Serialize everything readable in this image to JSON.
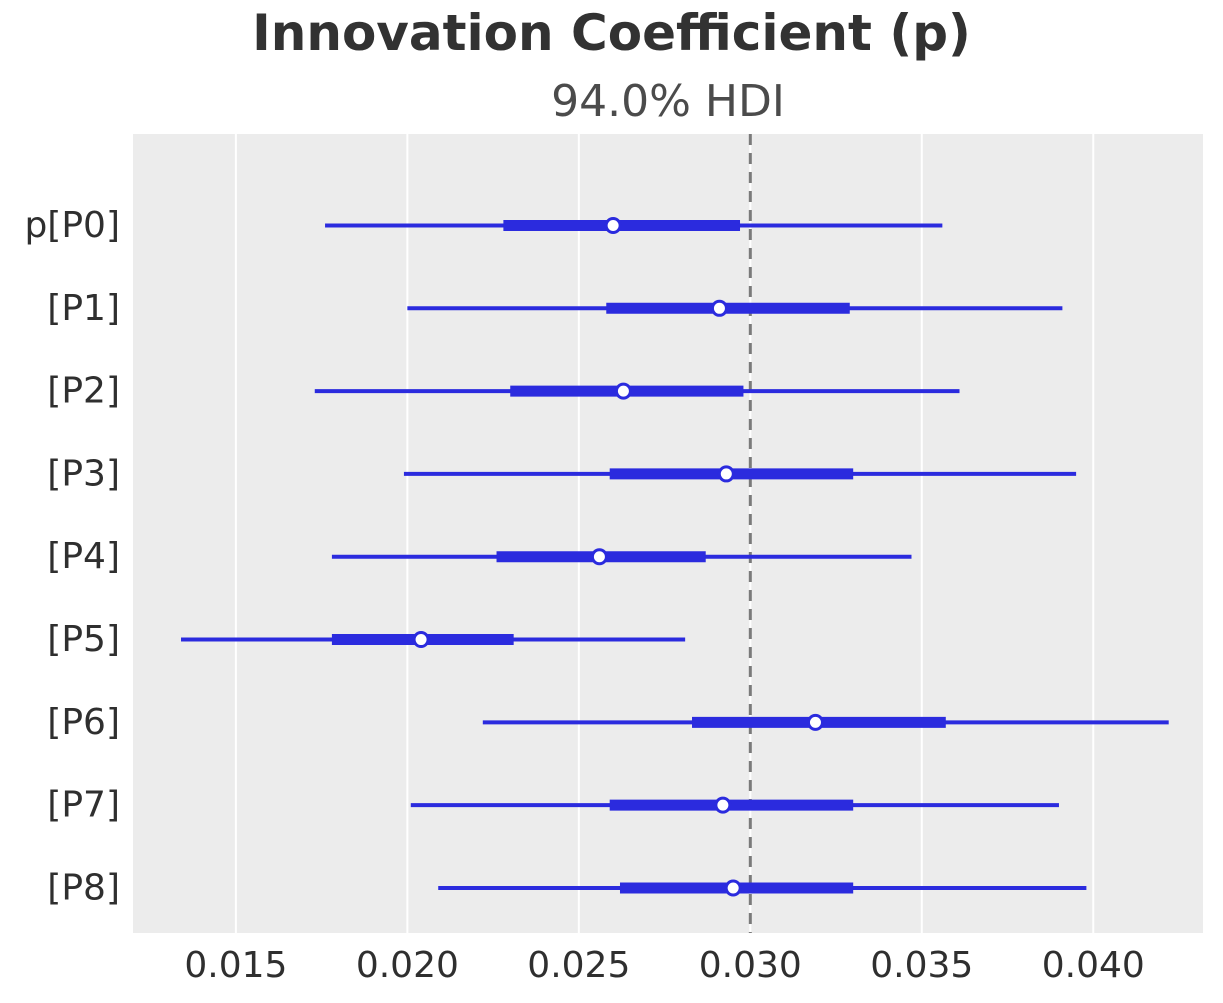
{
  "header": {
    "title": "Innovation Coefficient (p)",
    "subtitle": "94.0% HDI"
  },
  "chart_data": {
    "type": "forest",
    "title": "Innovation Coefficient (p)",
    "subtitle": "94.0% HDI",
    "hdi_probability": "94.0%",
    "xlabel": "",
    "ylabel": "",
    "xlim": [
      0.012,
      0.0432
    ],
    "x_ticks": [
      0.015,
      0.02,
      0.025,
      0.03,
      0.035,
      0.04
    ],
    "x_tick_labels": [
      "0.015",
      "0.020",
      "0.025",
      "0.030",
      "0.035",
      "0.040"
    ],
    "reference_line_x": 0.03,
    "grid": "vertical white gridlines on gray panel",
    "legend_position": "none",
    "rows": [
      {
        "label": "p[P0]",
        "hdi_low": 0.0176,
        "q_low": 0.0228,
        "median": 0.026,
        "q_high": 0.0297,
        "hdi_high": 0.0356
      },
      {
        "label": "[P1]",
        "hdi_low": 0.02,
        "q_low": 0.0258,
        "median": 0.0291,
        "q_high": 0.0329,
        "hdi_high": 0.0391
      },
      {
        "label": "[P2]",
        "hdi_low": 0.0173,
        "q_low": 0.023,
        "median": 0.0263,
        "q_high": 0.0298,
        "hdi_high": 0.0361
      },
      {
        "label": "[P3]",
        "hdi_low": 0.0199,
        "q_low": 0.0259,
        "median": 0.0293,
        "q_high": 0.033,
        "hdi_high": 0.0395
      },
      {
        "label": "[P4]",
        "hdi_low": 0.0178,
        "q_low": 0.0226,
        "median": 0.0256,
        "q_high": 0.0287,
        "hdi_high": 0.0347
      },
      {
        "label": "[P5]",
        "hdi_low": 0.0134,
        "q_low": 0.0178,
        "median": 0.0204,
        "q_high": 0.0231,
        "hdi_high": 0.0281
      },
      {
        "label": "[P6]",
        "hdi_low": 0.0222,
        "q_low": 0.0283,
        "median": 0.0319,
        "q_high": 0.0357,
        "hdi_high": 0.0422
      },
      {
        "label": "[P7]",
        "hdi_low": 0.0201,
        "q_low": 0.0259,
        "median": 0.0292,
        "q_high": 0.033,
        "hdi_high": 0.039
      },
      {
        "label": "[P8]",
        "hdi_low": 0.0209,
        "q_low": 0.0262,
        "median": 0.0295,
        "q_high": 0.033,
        "hdi_high": 0.0398
      }
    ],
    "colors": {
      "interval": "#2b2bde",
      "marker_fill": "#ffffff",
      "reference_line": "#7a7a7a",
      "plot_background": "#ececec",
      "gridline": "#ffffff",
      "tick_label": "#2f2f2f",
      "title": "#323232",
      "subtitle": "#4b4b4b"
    }
  }
}
